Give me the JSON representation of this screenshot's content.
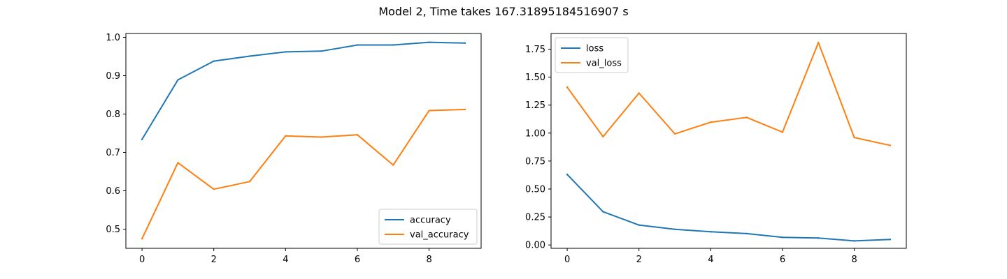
{
  "figure": {
    "title": "Model 2, Time takes 167.31895184516907 s"
  },
  "chart_data": [
    {
      "type": "line",
      "x": [
        0,
        1,
        2,
        3,
        4,
        5,
        6,
        7,
        8,
        9
      ],
      "xticks": [
        0,
        2,
        4,
        6,
        8
      ],
      "xlim": [
        -0.45,
        9.45
      ],
      "ylim": [
        0.45,
        1.01
      ],
      "yticks": [
        0.5,
        0.6,
        0.7,
        0.8,
        0.9,
        1.0
      ],
      "ytick_labels": [
        "0.5",
        "0.6",
        "0.7",
        "0.8",
        "0.9",
        "1.0"
      ],
      "legend_loc": "lower-right",
      "series": [
        {
          "name": "accuracy",
          "color": "#1f77b4",
          "values": [
            0.734,
            0.889,
            0.938,
            0.951,
            0.962,
            0.964,
            0.98,
            0.98,
            0.987,
            0.985
          ]
        },
        {
          "name": "val_accuracy",
          "color": "#ff7f0e",
          "values": [
            0.475,
            0.673,
            0.604,
            0.624,
            0.743,
            0.74,
            0.746,
            0.667,
            0.809,
            0.812
          ]
        }
      ]
    },
    {
      "type": "line",
      "x": [
        0,
        1,
        2,
        3,
        4,
        5,
        6,
        7,
        8,
        9
      ],
      "xticks": [
        0,
        2,
        4,
        6,
        8
      ],
      "xlim": [
        -0.45,
        9.45
      ],
      "ylim": [
        -0.03,
        1.89
      ],
      "yticks": [
        0.0,
        0.25,
        0.5,
        0.75,
        1.0,
        1.25,
        1.5,
        1.75
      ],
      "ytick_labels": [
        "0.00",
        "0.25",
        "0.50",
        "0.75",
        "1.00",
        "1.25",
        "1.50",
        "1.75"
      ],
      "legend_loc": "upper-left",
      "series": [
        {
          "name": "loss",
          "color": "#1f77b4",
          "values": [
            0.63,
            0.297,
            0.178,
            0.14,
            0.118,
            0.102,
            0.068,
            0.062,
            0.036,
            0.049
          ]
        },
        {
          "name": "val_loss",
          "color": "#ff7f0e",
          "values": [
            1.41,
            0.968,
            1.357,
            0.993,
            1.097,
            1.14,
            1.008,
            1.809,
            0.96,
            0.89
          ]
        }
      ]
    }
  ]
}
